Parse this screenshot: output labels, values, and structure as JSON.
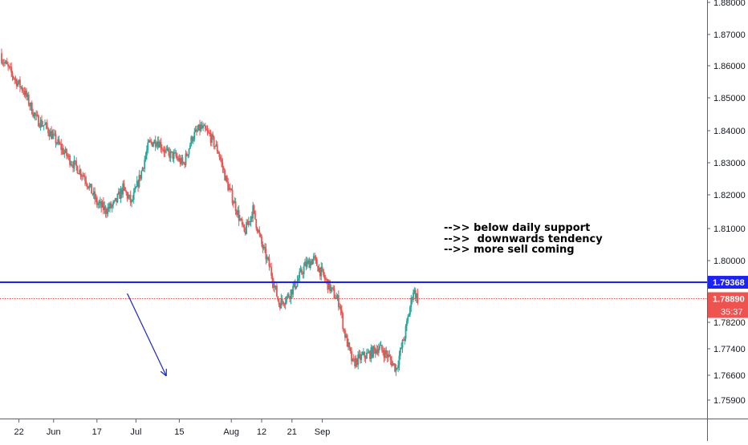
{
  "chart_data": {
    "type": "candlestick",
    "title": "",
    "x_tick_labels": [
      "22",
      "Jun",
      "17",
      "Jul",
      "15",
      "Aug",
      "12",
      "21",
      "Sep"
    ],
    "y_tick_labels": [
      "1.88000",
      "1.87000",
      "1.86000",
      "1.85000",
      "1.84000",
      "1.83000",
      "1.82000",
      "1.81000",
      "1.80000",
      "1.78200",
      "1.77400",
      "1.76600",
      "1.75900"
    ],
    "ylim": [
      1.7545,
      1.8815
    ],
    "grid": false,
    "colors": {
      "up": "#26a69a",
      "down": "#ef5350",
      "support": "#1e22f0",
      "price_line": "#ef5350",
      "arrow": "#1a26c8"
    },
    "support_line": {
      "value": 1.79368,
      "label": "1.79368"
    },
    "current_price": {
      "value": 1.7889,
      "label": "1.78890",
      "countdown": "35:37"
    },
    "annotations": [
      "-->> below daily support",
      "-->>  downwards tendency",
      "-->> more sell coming"
    ],
    "arrow": {
      "from": {
        "day": 29,
        "value": 1.7904
      },
      "to": {
        "day": 38,
        "value": 1.7658
      }
    },
    "close_path": [
      [
        0,
        1.8625
      ],
      [
        3,
        1.856
      ],
      [
        5,
        1.8525
      ],
      [
        8,
        1.8435
      ],
      [
        10,
        1.8415
      ],
      [
        13,
        1.836
      ],
      [
        16,
        1.8305
      ],
      [
        19,
        1.826
      ],
      [
        22,
        1.8175
      ],
      [
        24,
        1.8155
      ],
      [
        26,
        1.817
      ],
      [
        28,
        1.822
      ],
      [
        30,
        1.8175
      ],
      [
        32,
        1.826
      ],
      [
        34,
        1.836
      ],
      [
        36,
        1.837
      ],
      [
        38,
        1.833
      ],
      [
        40,
        1.832
      ],
      [
        42,
        1.8295
      ],
      [
        44,
        1.838
      ],
      [
        46,
        1.841
      ],
      [
        48,
        1.8385
      ],
      [
        50,
        1.8335
      ],
      [
        52,
        1.8235
      ],
      [
        54,
        1.8165
      ],
      [
        56,
        1.8085
      ],
      [
        58,
        1.8155
      ],
      [
        60,
        1.805
      ],
      [
        62,
        1.7975
      ],
      [
        64,
        1.7875
      ],
      [
        66,
        1.7895
      ],
      [
        68,
        1.7935
      ],
      [
        70,
        1.7985
      ],
      [
        72,
        1.8005
      ],
      [
        74,
        1.796
      ],
      [
        76,
        1.7915
      ],
      [
        78,
        1.7875
      ],
      [
        79,
        1.7795
      ],
      [
        81,
        1.7695
      ],
      [
        83,
        1.7715
      ],
      [
        85,
        1.7725
      ],
      [
        87,
        1.7745
      ],
      [
        89,
        1.772
      ],
      [
        91,
        1.768
      ],
      [
        93,
        1.778
      ],
      [
        95,
        1.7915
      ],
      [
        96,
        1.7889
      ]
    ]
  },
  "axis": {
    "x_ticks": [
      {
        "label": "22",
        "day": 4
      },
      {
        "label": "Jun",
        "day": 12
      },
      {
        "label": "17",
        "day": 22
      },
      {
        "label": "Jul",
        "day": 31
      },
      {
        "label": "15",
        "day": 41
      },
      {
        "label": "Aug",
        "day": 53
      },
      {
        "label": "12",
        "day": 60
      },
      {
        "label": "21",
        "day": 67
      },
      {
        "label": "Sep",
        "day": 74
      }
    ],
    "y_ticks": [
      {
        "label": "1.88000",
        "value": 1.88
      },
      {
        "label": "1.87000",
        "value": 1.87
      },
      {
        "label": "1.86000",
        "value": 1.86
      },
      {
        "label": "1.85000",
        "value": 1.85
      },
      {
        "label": "1.84000",
        "value": 1.84
      },
      {
        "label": "1.83000",
        "value": 1.83
      },
      {
        "label": "1.82000",
        "value": 1.82
      },
      {
        "label": "1.81000",
        "value": 1.81
      },
      {
        "label": "1.80000",
        "value": 1.8
      },
      {
        "label": "1.78200",
        "value": 1.782
      },
      {
        "label": "1.77400",
        "value": 1.774
      },
      {
        "label": "1.76600",
        "value": 1.766
      },
      {
        "label": "1.75900",
        "value": 1.759
      }
    ]
  }
}
